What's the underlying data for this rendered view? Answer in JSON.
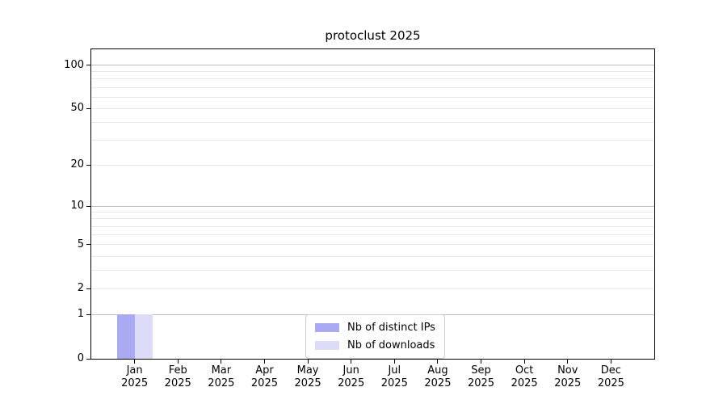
{
  "title": "protoclust 2025",
  "colors": {
    "distinct_ips": "#aaaaf2",
    "downloads": "#dcdcf8",
    "grid_major": "#bdbdbd",
    "grid_minor": "#e8e8e8",
    "axis": "#000000",
    "legend_border": "#cccccc"
  },
  "legend": {
    "items": [
      {
        "label": "Nb of distinct IPs",
        "color_key": "distinct_ips"
      },
      {
        "label": "Nb of downloads",
        "color_key": "downloads"
      }
    ]
  },
  "chart_data": {
    "type": "bar",
    "title": "protoclust 2025",
    "categories": [
      "Jan",
      "Feb",
      "Mar",
      "Apr",
      "May",
      "Jun",
      "Jul",
      "Aug",
      "Sep",
      "Oct",
      "Nov",
      "Dec"
    ],
    "category_year_label": "2025",
    "series": [
      {
        "name": "Nb of distinct IPs",
        "color_key": "distinct_ips",
        "values": [
          1,
          0,
          0,
          0,
          0,
          0,
          0,
          0,
          0,
          0,
          0,
          0
        ]
      },
      {
        "name": "Nb of downloads",
        "color_key": "downloads",
        "values": [
          1,
          0,
          0,
          0,
          0,
          0,
          0,
          0,
          0,
          0,
          0,
          0
        ]
      }
    ],
    "y_scale": "log1p",
    "ylim": [
      0,
      113
    ],
    "y_ticks": [
      0,
      1,
      2,
      5,
      10,
      20,
      50,
      100
    ],
    "y_tick_labels": [
      "0",
      "1",
      "2",
      "5",
      "10",
      "20",
      "50",
      "100"
    ],
    "y_minor_ticks": [
      3,
      4,
      6,
      7,
      8,
      9,
      30,
      40,
      60,
      70,
      80,
      90
    ],
    "y_decade_ticks": [
      1,
      10,
      100
    ],
    "xlabel": "",
    "ylabel": "",
    "grid": true,
    "legend_position": "lower center"
  }
}
